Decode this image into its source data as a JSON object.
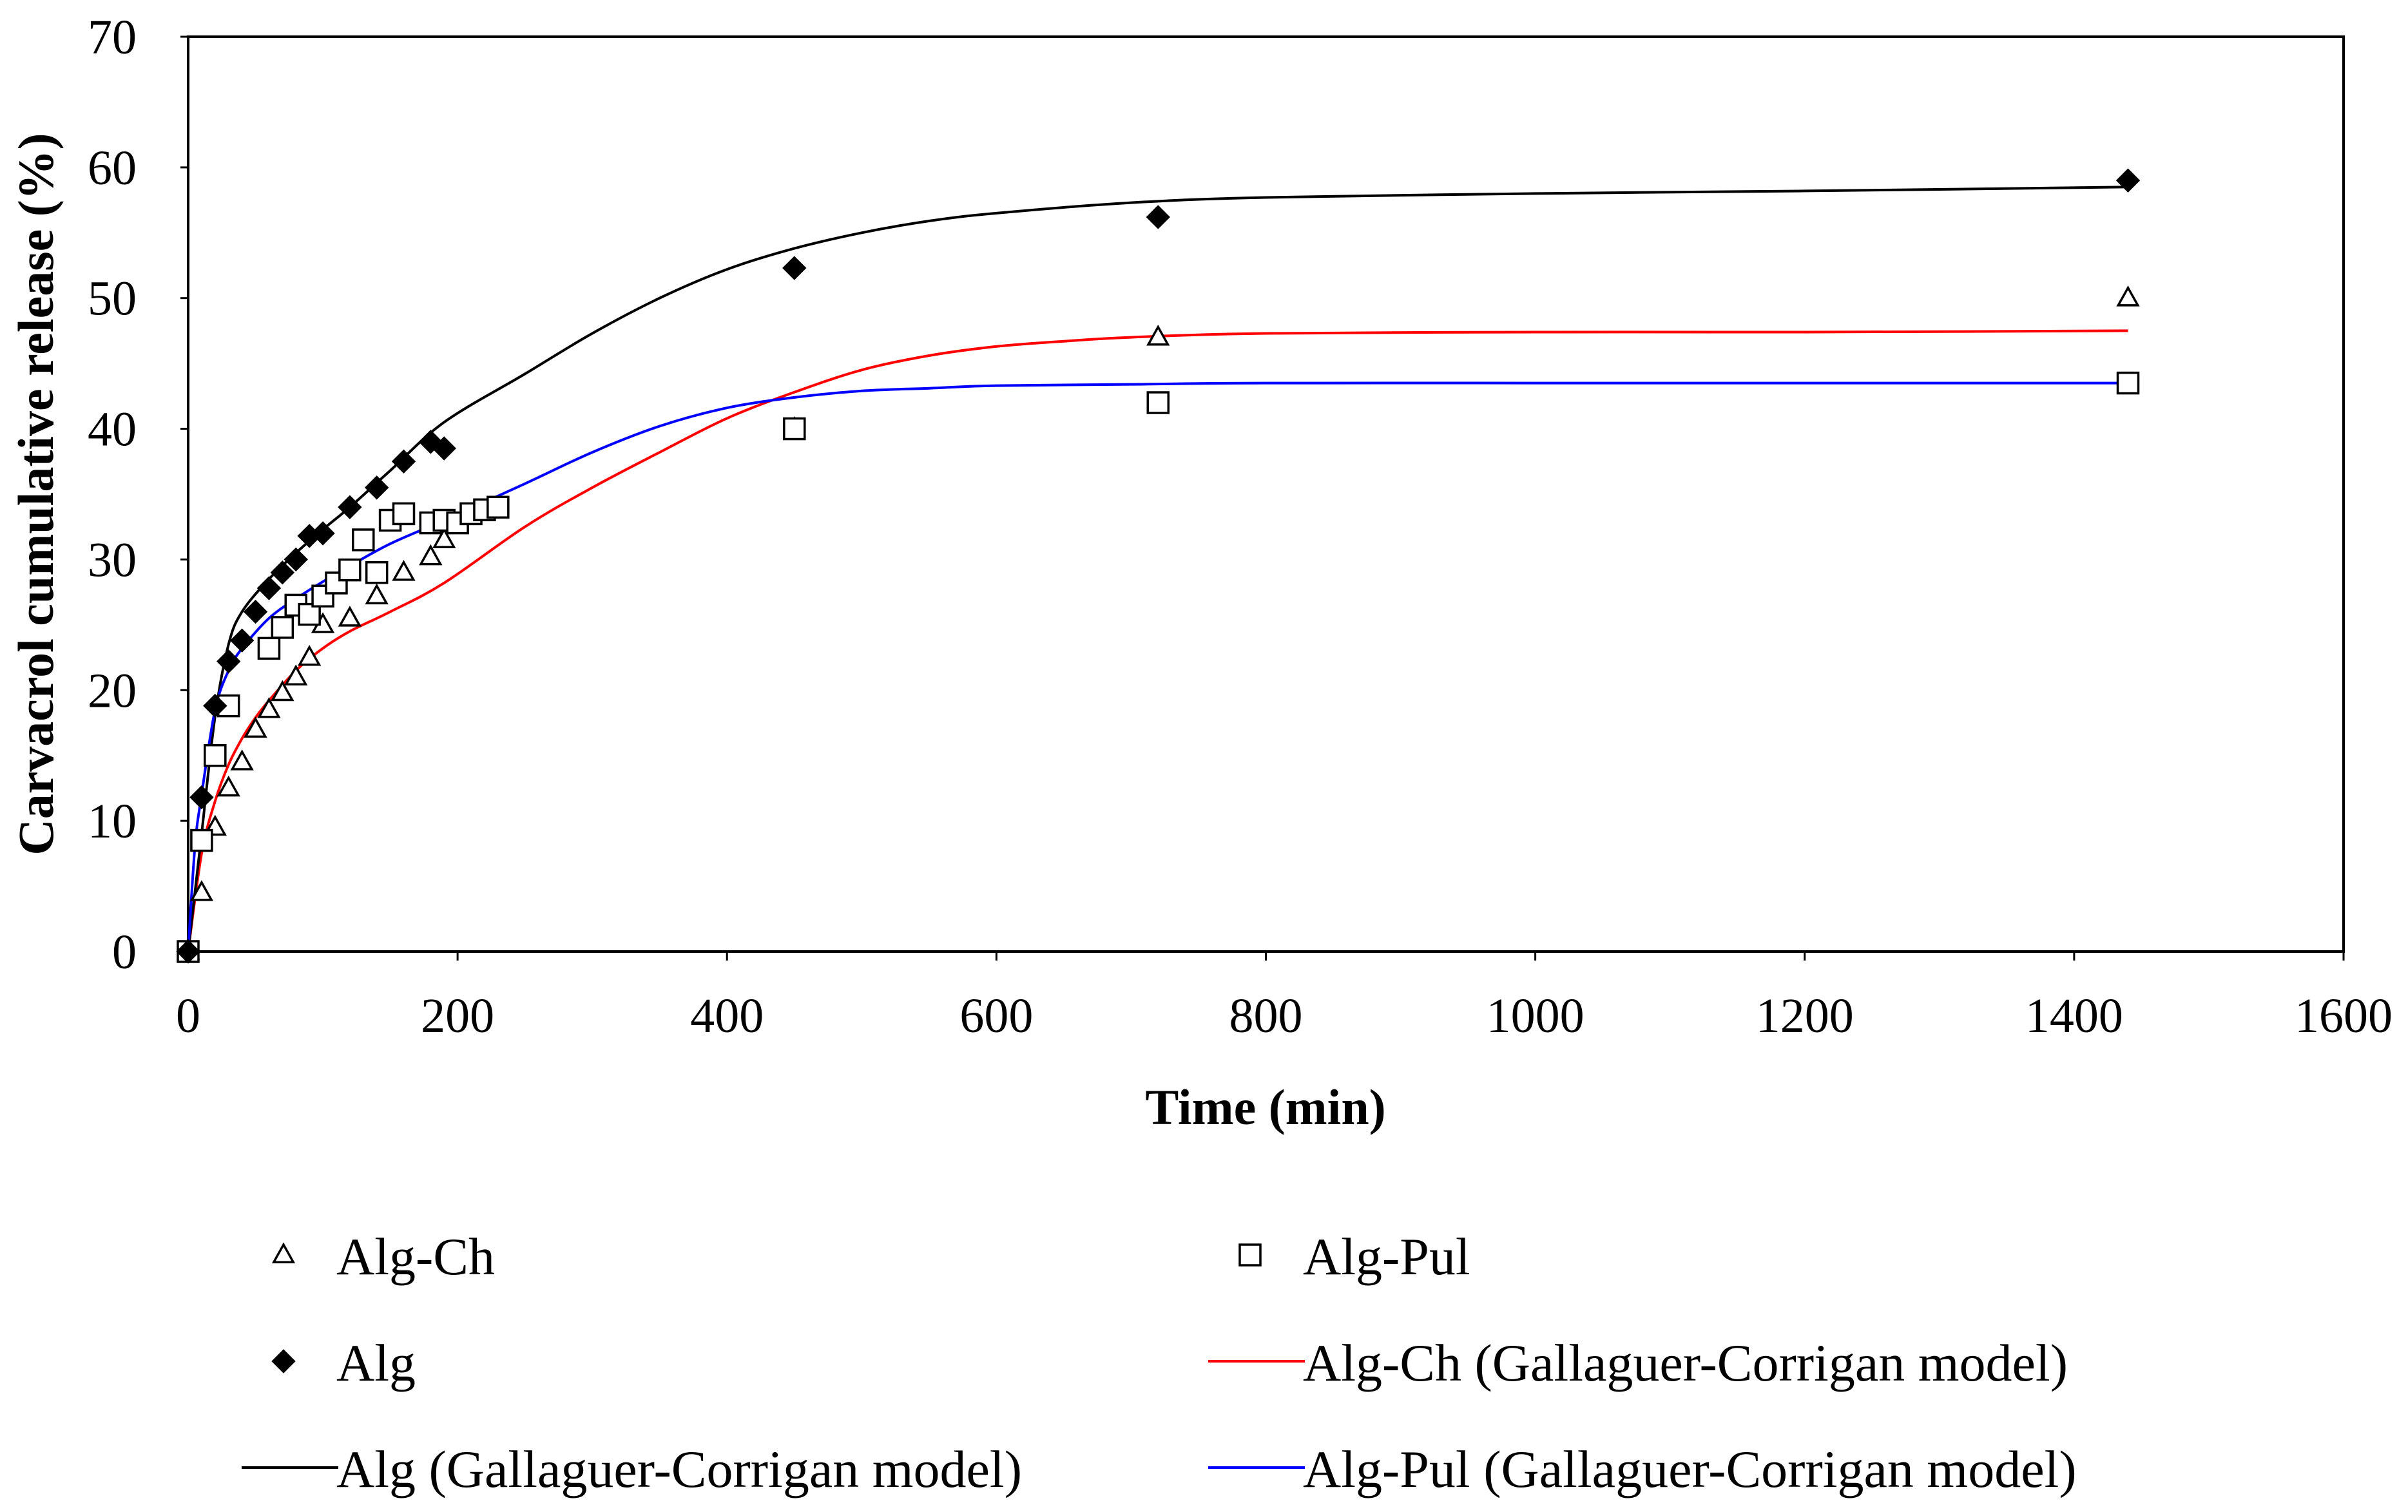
{
  "chart_data": {
    "type": "scatter",
    "title": "",
    "xlabel": "Time (min)",
    "ylabel": "Carvacrol cumulative release (%)",
    "xlim": [
      0,
      1600
    ],
    "ylim": [
      0,
      70
    ],
    "xticks": [
      0,
      200,
      400,
      600,
      800,
      1000,
      1200,
      1400,
      1600
    ],
    "yticks": [
      0,
      10,
      20,
      30,
      40,
      50,
      60,
      70
    ],
    "grid": false,
    "legend_position": "bottom",
    "series": [
      {
        "name": "Alg-Ch",
        "kind": "points",
        "marker": "open-triangle",
        "color": "#000000",
        "x": [
          0,
          10,
          20,
          30,
          40,
          50,
          60,
          70,
          80,
          90,
          100,
          120,
          140,
          160,
          180,
          190,
          450,
          720,
          1440
        ],
        "y": [
          0,
          4.5,
          9.5,
          12.5,
          14.5,
          17,
          18.5,
          19.8,
          21,
          22.5,
          25,
          25.5,
          27.2,
          29,
          30.2,
          31.5,
          40,
          47,
          50
        ]
      },
      {
        "name": "Alg-Pul",
        "kind": "points",
        "marker": "open-square",
        "color": "#000000",
        "x": [
          0,
          10,
          20,
          30,
          60,
          70,
          80,
          90,
          100,
          110,
          120,
          130,
          140,
          150,
          160,
          180,
          190,
          200,
          210,
          220,
          230,
          450,
          720,
          1440
        ],
        "y": [
          0,
          8.5,
          15,
          18.8,
          23.2,
          24.8,
          26.5,
          25.8,
          27.2,
          28.2,
          29.2,
          31.5,
          29,
          33,
          33.5,
          32.8,
          33,
          32.8,
          33.5,
          33.8,
          34,
          40,
          42,
          43.5
        ]
      },
      {
        "name": "Alg",
        "kind": "points",
        "marker": "filled-diamond",
        "color": "#000000",
        "x": [
          0,
          10,
          20,
          30,
          40,
          50,
          60,
          70,
          80,
          90,
          100,
          120,
          140,
          160,
          180,
          190,
          450,
          720,
          1440
        ],
        "y": [
          0,
          11.8,
          18.8,
          22.2,
          23.8,
          26,
          27.8,
          29,
          30,
          31.8,
          32,
          34,
          35.5,
          37.5,
          39,
          38.5,
          52.3,
          56.2,
          59
        ]
      },
      {
        "name": "Alg-Ch (Gallaguer-Corrigan model)",
        "kind": "line",
        "color": "#ff0000",
        "x": [
          0,
          10,
          20,
          30,
          40,
          50,
          60,
          80,
          100,
          120,
          150,
          190,
          250,
          300,
          350,
          400,
          450,
          500,
          550,
          600,
          650,
          700,
          800,
          1000,
          1200,
          1440
        ],
        "y": [
          0,
          7.5,
          11.5,
          14.3,
          16.3,
          17.9,
          19.2,
          21.5,
          23.2,
          24.5,
          26,
          28.2,
          32.5,
          35.5,
          38.2,
          40.8,
          42.8,
          44.5,
          45.6,
          46.3,
          46.7,
          47,
          47.3,
          47.4,
          47.4,
          47.5
        ]
      },
      {
        "name": "Alg (Gallaguer-Corrigan model)",
        "kind": "line",
        "color": "#000000",
        "x": [
          0,
          5,
          10,
          20,
          30,
          40,
          60,
          80,
          100,
          120,
          150,
          190,
          250,
          300,
          350,
          400,
          450,
          500,
          550,
          600,
          700,
          800,
          1000,
          1200,
          1440
        ],
        "y": [
          0,
          4.5,
          9,
          18,
          23.5,
          26,
          28.5,
          30.5,
          32.3,
          34,
          36.8,
          40.5,
          44.2,
          47.3,
          50,
          52.2,
          53.8,
          55,
          55.9,
          56.5,
          57.3,
          57.7,
          58,
          58.2,
          58.5
        ]
      },
      {
        "name": "Alg-Pul (Gallaguer-Corrigan model)",
        "kind": "line",
        "color": "#0000ff",
        "x": [
          0,
          5,
          10,
          20,
          30,
          40,
          60,
          80,
          100,
          120,
          150,
          190,
          250,
          300,
          350,
          400,
          450,
          500,
          550,
          600,
          700,
          800,
          1000,
          1200,
          1440
        ],
        "y": [
          0,
          8,
          12,
          18.5,
          21.5,
          23.2,
          25.5,
          27,
          28.3,
          29.5,
          31.2,
          33,
          35.8,
          38.2,
          40.2,
          41.6,
          42.4,
          42.9,
          43.1,
          43.3,
          43.4,
          43.5,
          43.5,
          43.5,
          43.5
        ]
      }
    ]
  }
}
